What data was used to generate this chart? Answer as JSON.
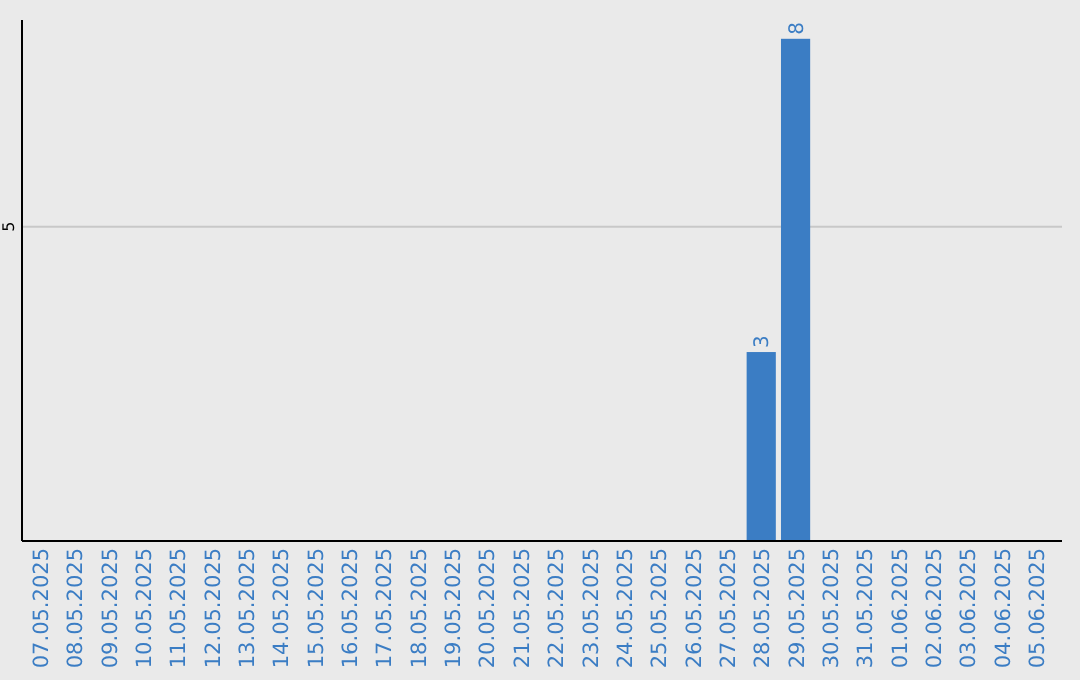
{
  "chart_data": {
    "type": "bar",
    "categories": [
      "07.05.2025",
      "08.05.2025",
      "09.05.2025",
      "10.05.2025",
      "11.05.2025",
      "12.05.2025",
      "13.05.2025",
      "14.05.2025",
      "15.05.2025",
      "16.05.2025",
      "17.05.2025",
      "18.05.2025",
      "19.05.2025",
      "20.05.2025",
      "21.05.2025",
      "22.05.2025",
      "23.05.2025",
      "24.05.2025",
      "25.05.2025",
      "26.05.2025",
      "27.05.2025",
      "28.05.2025",
      "29.05.2025",
      "30.05.2025",
      "31.05.2025",
      "01.06.2025",
      "02.06.2025",
      "03.06.2025",
      "04.06.2025",
      "05.06.2025"
    ],
    "values": [
      null,
      null,
      null,
      null,
      null,
      null,
      null,
      null,
      null,
      null,
      null,
      null,
      null,
      null,
      null,
      null,
      null,
      null,
      null,
      null,
      null,
      3,
      8,
      null,
      null,
      null,
      null,
      null,
      null,
      null
    ],
    "value_labels": [
      null,
      null,
      null,
      null,
      null,
      null,
      null,
      null,
      null,
      null,
      null,
      null,
      null,
      null,
      null,
      null,
      null,
      null,
      null,
      null,
      null,
      "3",
      "8",
      null,
      null,
      null,
      null,
      null,
      null,
      null
    ],
    "color": "#3b7dc4",
    "ref_lines": [
      {
        "axis": "y",
        "value": 5,
        "label": "5",
        "color": "#c8c8c8"
      }
    ]
  }
}
